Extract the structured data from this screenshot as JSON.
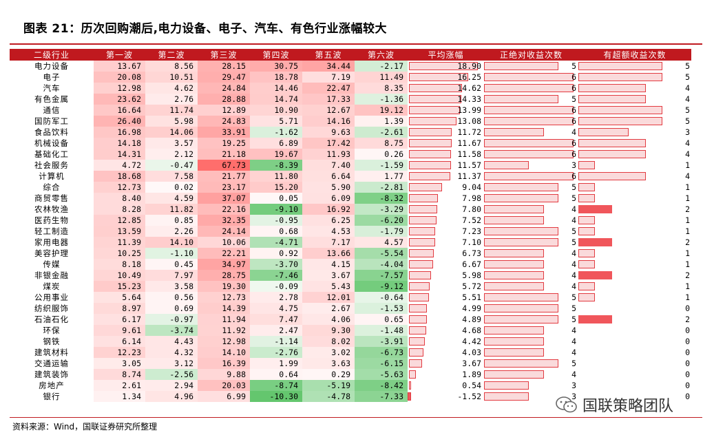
{
  "title": "图表 21：历次回购潮后,电力设备、电子、汽车、有色行业涨幅较大",
  "source": "资料来源：Wind，国联证券研究所整理",
  "watermark": "国联策略团队",
  "watermark_icon": "wechat-icon",
  "headers": [
    "二级行业",
    "第一波",
    "第二波",
    "第三波",
    "第四波",
    "第五波",
    "第六波",
    "平均涨幅",
    "正绝对收益次数",
    "有超额收益次数"
  ],
  "rows": [
    {
      "name": "电力设备",
      "w": [
        "13.67",
        "8.56",
        "28.15",
        "30.75",
        "34.44",
        "-2.17"
      ],
      "avg": "18.90",
      "abs": "5",
      "exc": "5"
    },
    {
      "name": "电子",
      "w": [
        "20.08",
        "10.51",
        "29.47",
        "18.78",
        "7.19",
        "11.49"
      ],
      "avg": "16.25",
      "abs": "6",
      "exc": "5"
    },
    {
      "name": "汽车",
      "w": [
        "12.98",
        "4.62",
        "24.84",
        "14.46",
        "22.47",
        "8.35"
      ],
      "avg": "14.62",
      "abs": "6",
      "exc": "4"
    },
    {
      "name": "有色金属",
      "w": [
        "23.62",
        "2.76",
        "28.88",
        "14.74",
        "17.33",
        "-1.36"
      ],
      "avg": "14.33",
      "abs": "5",
      "exc": "4"
    },
    {
      "name": "通信",
      "w": [
        "16.64",
        "11.74",
        "12.89",
        "10.90",
        "12.67",
        "19.12"
      ],
      "avg": "13.99",
      "abs": "6",
      "exc": "5"
    },
    {
      "name": "国防军工",
      "w": [
        "26.40",
        "5.98",
        "24.83",
        "5.71",
        "14.16",
        "1.39"
      ],
      "avg": "13.08",
      "abs": "6",
      "exc": "5"
    },
    {
      "name": "食品饮料",
      "w": [
        "16.98",
        "14.06",
        "33.91",
        "-1.62",
        "9.63",
        "-2.61"
      ],
      "avg": "11.72",
      "abs": "4",
      "exc": "3"
    },
    {
      "name": "机械设备",
      "w": [
        "14.18",
        "3.57",
        "19.25",
        "6.89",
        "17.42",
        "8.75"
      ],
      "avg": "11.67",
      "abs": "6",
      "exc": "4"
    },
    {
      "name": "基础化工",
      "w": [
        "14.31",
        "2.12",
        "21.18",
        "19.67",
        "11.93",
        "0.26"
      ],
      "avg": "11.58",
      "abs": "6",
      "exc": "4"
    },
    {
      "name": "社会服务",
      "w": [
        "4.72",
        "-0.47",
        "67.73",
        "-8.39",
        "7.40",
        "-1.59"
      ],
      "avg": "11.57",
      "abs": "3",
      "exc": "1"
    },
    {
      "name": "计算机",
      "w": [
        "18.68",
        "7.58",
        "21.77",
        "11.80",
        "6.64",
        "1.77"
      ],
      "avg": "11.37",
      "abs": "6",
      "exc": "4"
    },
    {
      "name": "综合",
      "w": [
        "12.73",
        "0.02",
        "23.17",
        "15.20",
        "5.90",
        "-2.81"
      ],
      "avg": "9.04",
      "abs": "5",
      "exc": "1"
    },
    {
      "name": "商贸零售",
      "w": [
        "8.40",
        "4.59",
        "37.07",
        "0.05",
        "6.09",
        "-8.32"
      ],
      "avg": "7.98",
      "abs": "5",
      "exc": "1"
    },
    {
      "name": "农林牧渔",
      "w": [
        "8.28",
        "11.82",
        "22.16",
        "-9.10",
        "16.92",
        "-3.29"
      ],
      "avg": "7.80",
      "abs": "4",
      "exc": "2"
    },
    {
      "name": "医药生物",
      "w": [
        "12.85",
        "0.85",
        "32.35",
        "-0.95",
        "6.25",
        "-6.20"
      ],
      "avg": "7.52",
      "abs": "4",
      "exc": "1"
    },
    {
      "name": "轻工制造",
      "w": [
        "13.59",
        "2.26",
        "24.14",
        "0.68",
        "4.53",
        "-1.79"
      ],
      "avg": "7.23",
      "abs": "5",
      "exc": "1"
    },
    {
      "name": "家用电器",
      "w": [
        "11.39",
        "14.10",
        "10.06",
        "-4.71",
        "7.17",
        "4.57"
      ],
      "avg": "7.10",
      "abs": "5",
      "exc": "2"
    },
    {
      "name": "美容护理",
      "w": [
        "10.25",
        "-1.10",
        "22.21",
        "0.92",
        "13.66",
        "-5.54"
      ],
      "avg": "6.73",
      "abs": "4",
      "exc": "1"
    },
    {
      "name": "传媒",
      "w": [
        "8.18",
        "0.45",
        "34.97",
        "-3.70",
        "4.15",
        "-4.04"
      ],
      "avg": "6.67",
      "abs": "4",
      "exc": "1"
    },
    {
      "name": "非银金融",
      "w": [
        "10.49",
        "7.97",
        "28.75",
        "-7.46",
        "3.67",
        "-7.57"
      ],
      "avg": "5.98",
      "abs": "4",
      "exc": "2"
    },
    {
      "name": "煤炭",
      "w": [
        "15.23",
        "3.58",
        "19.30",
        "-0.09",
        "5.43",
        "-9.12"
      ],
      "avg": "5.72",
      "abs": "4",
      "exc": "1"
    },
    {
      "name": "公用事业",
      "w": [
        "5.64",
        "0.56",
        "12.73",
        "2.78",
        "12.01",
        "-0.64"
      ],
      "avg": "5.51",
      "abs": "5",
      "exc": "1"
    },
    {
      "name": "纺织服饰",
      "w": [
        "8.97",
        "0.69",
        "14.39",
        "4.75",
        "2.67",
        "-1.53"
      ],
      "avg": "4.99",
      "abs": "5",
      "exc": "0"
    },
    {
      "name": "石油石化",
      "w": [
        "6.17",
        "-0.97",
        "11.94",
        "7.47",
        "4.06",
        "0.65"
      ],
      "avg": "4.89",
      "abs": "5",
      "exc": "2"
    },
    {
      "name": "环保",
      "w": [
        "9.61",
        "-3.74",
        "11.92",
        "2.47",
        "9.30",
        "-1.48"
      ],
      "avg": "4.68",
      "abs": "4",
      "exc": "0"
    },
    {
      "name": "钢铁",
      "w": [
        "6.14",
        "4.43",
        "12.98",
        "-1.14",
        "8.02",
        "-3.91"
      ],
      "avg": "4.42",
      "abs": "4",
      "exc": "0"
    },
    {
      "name": "建筑材料",
      "w": [
        "12.23",
        "4.32",
        "14.10",
        "-2.76",
        "3.02",
        "-6.73"
      ],
      "avg": "4.03",
      "abs": "4",
      "exc": "0"
    },
    {
      "name": "交通运输",
      "w": [
        "3.05",
        "3.12",
        "16.39",
        "1.99",
        "3.63",
        "-6.15"
      ],
      "avg": "3.67",
      "abs": "5",
      "exc": "0"
    },
    {
      "name": "建筑装饰",
      "w": [
        "8.74",
        "-2.56",
        "9.88",
        "0.64",
        "0.29",
        "-5.63"
      ],
      "avg": "1.89",
      "abs": "4",
      "exc": "0"
    },
    {
      "name": "房地产",
      "w": [
        "2.61",
        "2.94",
        "20.03",
        "-8.74",
        "-5.19",
        "-8.42"
      ],
      "avg": "0.54",
      "abs": "3",
      "exc": "0"
    },
    {
      "name": "银行",
      "w": [
        "1.34",
        "4.96",
        "6.99",
        "-10.30",
        "-4.78",
        "-7.33"
      ],
      "avg": "-1.52",
      "abs": "3",
      "exc": "0"
    }
  ]
}
